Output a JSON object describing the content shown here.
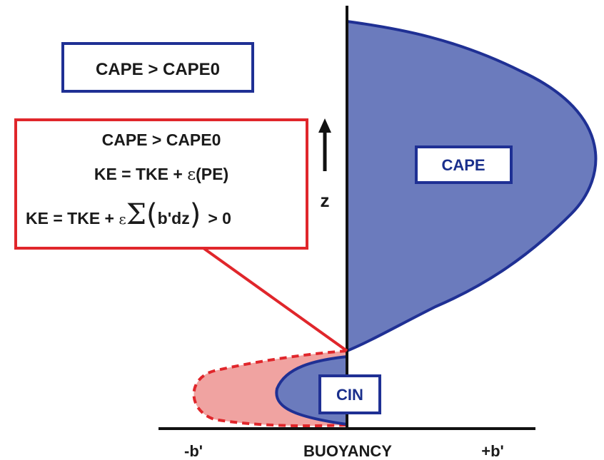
{
  "diagram": {
    "top_box": {
      "text": "CAPE > CAPE0"
    },
    "red_box": {
      "line1": "CAPE > CAPE0",
      "line2_pre": "KE = TKE + ",
      "line2_eps": "ε",
      "line2_post": "(PE)",
      "line3_pre": "KE = TKE + ",
      "line3_eps": "ε",
      "line3_sigma": "Σ",
      "line3_paren_open": "(",
      "line3_inner": "b'dz",
      "line3_paren_close": ")",
      "line3_post": "> 0"
    },
    "z_label": "z",
    "cape_label": "CAPE",
    "cin_label": "CIN",
    "axis": {
      "left": "-b'",
      "center": "BUOYANCY",
      "right": "+b'"
    }
  },
  "colors": {
    "cape_fill": "#6b7bbd",
    "cape_stroke": "#1f3094",
    "red": "#e0262b",
    "red_fill": "#f0a3a1",
    "blue_box": "#1f3094",
    "axis": "#111111"
  }
}
